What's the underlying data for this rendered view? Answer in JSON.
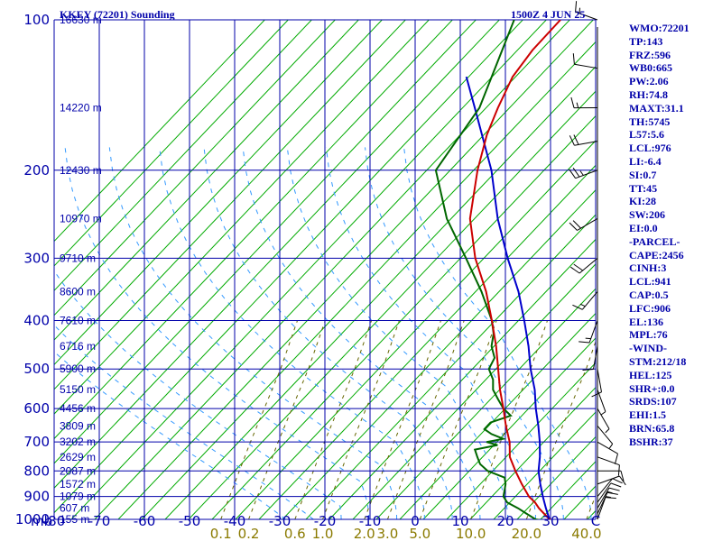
{
  "header": {
    "station": "KKEY (72201) Sounding",
    "time": "1500Z  4 JUN 25"
  },
  "colors": {
    "grid": "#0000aa",
    "dry_adiabat": "#00aa00",
    "moist_adiabat": "#3399ff",
    "mixing_ratio": "#666600",
    "temperature": "#cc0000",
    "dewpoint": "#006600",
    "parcel": "#0000cc",
    "wind_barb": "#000000"
  },
  "chart_data": {
    "type": "skew-t log-p",
    "pressure_unit_label": "mb",
    "pressure_levels": [
      100,
      200,
      300,
      400,
      500,
      600,
      700,
      800,
      900,
      1000
    ],
    "pressure_labels": [
      "100",
      "200",
      "300",
      "400",
      "500",
      "600",
      "700",
      "800",
      "900",
      "1000"
    ],
    "temperature_ticks": [
      -80,
      -70,
      -60,
      -50,
      -40,
      -30,
      -20,
      -10,
      0,
      10,
      20,
      30,
      40
    ],
    "temperature_labels": [
      "-80",
      "-70",
      "-60",
      "-50",
      "-40",
      "-30",
      "-20",
      "-10",
      "0",
      "10",
      "20",
      "30",
      "C"
    ],
    "mixing_ratio_labels": [
      {
        "value": 0.1,
        "label": "0.1"
      },
      {
        "value": 0.2,
        "label": "0.2"
      },
      {
        "value": 0.6,
        "label": "0.6"
      },
      {
        "value": 1.0,
        "label": "1.0"
      },
      {
        "value": 2.0,
        "label": "2.0"
      },
      {
        "value": 3.0,
        "label": "3.0"
      },
      {
        "value": 5.0,
        "label": "5.0"
      },
      {
        "value": 10.0,
        "label": "10.0"
      },
      {
        "value": 20.0,
        "label": "20.0"
      },
      {
        "value": 40.0,
        "label": "40.0"
      }
    ],
    "height_labels": [
      {
        "p": 100,
        "label": "16630 m"
      },
      {
        "p": 150,
        "label": "14220 m"
      },
      {
        "p": 200,
        "label": "12430 m"
      },
      {
        "p": 250,
        "label": "10970 m"
      },
      {
        "p": 300,
        "label": "9710 m"
      },
      {
        "p": 350,
        "label": "8600 m"
      },
      {
        "p": 400,
        "label": "7610 m"
      },
      {
        "p": 450,
        "label": "6716 m"
      },
      {
        "p": 500,
        "label": "5900 m"
      },
      {
        "p": 550,
        "label": "5150 m"
      },
      {
        "p": 600,
        "label": "4456 m"
      },
      {
        "p": 650,
        "label": "3809 m"
      },
      {
        "p": 700,
        "label": "3202 m"
      },
      {
        "p": 750,
        "label": "2629 m"
      },
      {
        "p": 800,
        "label": "2087 m"
      },
      {
        "p": 850,
        "label": "1572 m"
      },
      {
        "p": 900,
        "label": "1079 m"
      },
      {
        "p": 950,
        "label": "607 m"
      },
      {
        "p": 1000,
        "label": "155 m"
      }
    ],
    "temperature_profile": [
      [
        1011,
        28.5
      ],
      [
        1000,
        27
      ],
      [
        950,
        22.5
      ],
      [
        925,
        20.5
      ],
      [
        900,
        18
      ],
      [
        850,
        14
      ],
      [
        800,
        10
      ],
      [
        750,
        6
      ],
      [
        700,
        3
      ],
      [
        650,
        -1
      ],
      [
        600,
        -5
      ],
      [
        550,
        -9.5
      ],
      [
        500,
        -14
      ],
      [
        450,
        -19
      ],
      [
        400,
        -25
      ],
      [
        350,
        -32
      ],
      [
        300,
        -41
      ],
      [
        250,
        -50
      ],
      [
        200,
        -58
      ],
      [
        170,
        -63
      ],
      [
        150,
        -66
      ],
      [
        130,
        -69
      ],
      [
        115,
        -70
      ],
      [
        100,
        -70
      ]
    ],
    "dewpoint_profile": [
      [
        1011,
        27.5
      ],
      [
        1000,
        24
      ],
      [
        975,
        21
      ],
      [
        950,
        18
      ],
      [
        925,
        14.5
      ],
      [
        900,
        12.5
      ],
      [
        875,
        11.5
      ],
      [
        850,
        10.5
      ],
      [
        825,
        9
      ],
      [
        800,
        4
      ],
      [
        775,
        1
      ],
      [
        750,
        -1
      ],
      [
        725,
        -3
      ],
      [
        710,
        1
      ],
      [
        700,
        -2
      ],
      [
        690,
        1
      ],
      [
        675,
        -2.5
      ],
      [
        660,
        -5
      ],
      [
        640,
        -5
      ],
      [
        620,
        -2
      ],
      [
        600,
        -5
      ],
      [
        575,
        -8
      ],
      [
        550,
        -11
      ],
      [
        525,
        -13
      ],
      [
        500,
        -16
      ],
      [
        475,
        -17
      ],
      [
        450,
        -20
      ],
      [
        425,
        -22
      ],
      [
        400,
        -25
      ],
      [
        350,
        -33
      ],
      [
        300,
        -43
      ],
      [
        250,
        -55
      ],
      [
        200,
        -67
      ],
      [
        150,
        -70
      ],
      [
        100,
        -80
      ]
    ],
    "parcel_profile": [
      [
        1011,
        28.5
      ],
      [
        1000,
        27
      ],
      [
        950,
        24
      ],
      [
        900,
        21
      ],
      [
        850,
        18
      ],
      [
        800,
        15
      ],
      [
        750,
        12.5
      ],
      [
        700,
        9.5
      ],
      [
        650,
        6
      ],
      [
        600,
        2
      ],
      [
        550,
        -2
      ],
      [
        500,
        -7
      ],
      [
        450,
        -12
      ],
      [
        400,
        -18
      ],
      [
        350,
        -25
      ],
      [
        300,
        -34
      ],
      [
        250,
        -44
      ],
      [
        200,
        -55
      ],
      [
        150,
        -71
      ],
      [
        130,
        -79
      ]
    ],
    "wind_barb_levels": [
      {
        "p": 1000,
        "dir": 200,
        "kt": 10
      },
      {
        "p": 975,
        "dir": 205,
        "kt": 15
      },
      {
        "p": 950,
        "dir": 210,
        "kt": 15
      },
      {
        "p": 925,
        "dir": 215,
        "kt": 10
      },
      {
        "p": 900,
        "dir": 220,
        "kt": 10
      },
      {
        "p": 850,
        "dir": 250,
        "kt": 10
      },
      {
        "p": 800,
        "dir": 270,
        "kt": 10
      },
      {
        "p": 750,
        "dir": 290,
        "kt": 10
      },
      {
        "p": 700,
        "dir": 300,
        "kt": 10
      },
      {
        "p": 650,
        "dir": 320,
        "kt": 5
      },
      {
        "p": 600,
        "dir": 330,
        "kt": 5
      },
      {
        "p": 550,
        "dir": 340,
        "kt": 5
      },
      {
        "p": 500,
        "dir": 350,
        "kt": 10
      },
      {
        "p": 450,
        "dir": 10,
        "kt": 10
      },
      {
        "p": 400,
        "dir": 20,
        "kt": 15
      },
      {
        "p": 350,
        "dir": 40,
        "kt": 15
      },
      {
        "p": 300,
        "dir": 50,
        "kt": 20
      },
      {
        "p": 250,
        "dir": 60,
        "kt": 20
      },
      {
        "p": 200,
        "dir": 70,
        "kt": 25
      },
      {
        "p": 175,
        "dir": 80,
        "kt": 20
      },
      {
        "p": 150,
        "dir": 90,
        "kt": 15
      },
      {
        "p": 125,
        "dir": 100,
        "kt": 10
      },
      {
        "p": 100,
        "dir": 110,
        "kt": 15
      }
    ]
  },
  "indices": [
    "WMO:72201",
    "TP:143",
    "FRZ:596",
    "WB0:665",
    "PW:2.06",
    "RH:74.8",
    "MAXT:31.1",
    "TH:5745",
    "L57:5.6",
    "LCL:976",
    "LI:-6.4",
    "SI:0.7",
    "TT:45",
    "KI:28",
    "SW:206",
    "EI:0.0",
    "-PARCEL-",
    "CAPE:2456",
    "CINH:3",
    "LCL:941",
    "CAP:0.5",
    "LFC:906",
    "EL:136",
    "MPL:76",
    "-WIND-",
    "STM:212/18",
    "HEL:125",
    "SHR+:0.0",
    "SRDS:107",
    "EHI:1.5",
    "BRN:65.8",
    "BSHR:37"
  ]
}
